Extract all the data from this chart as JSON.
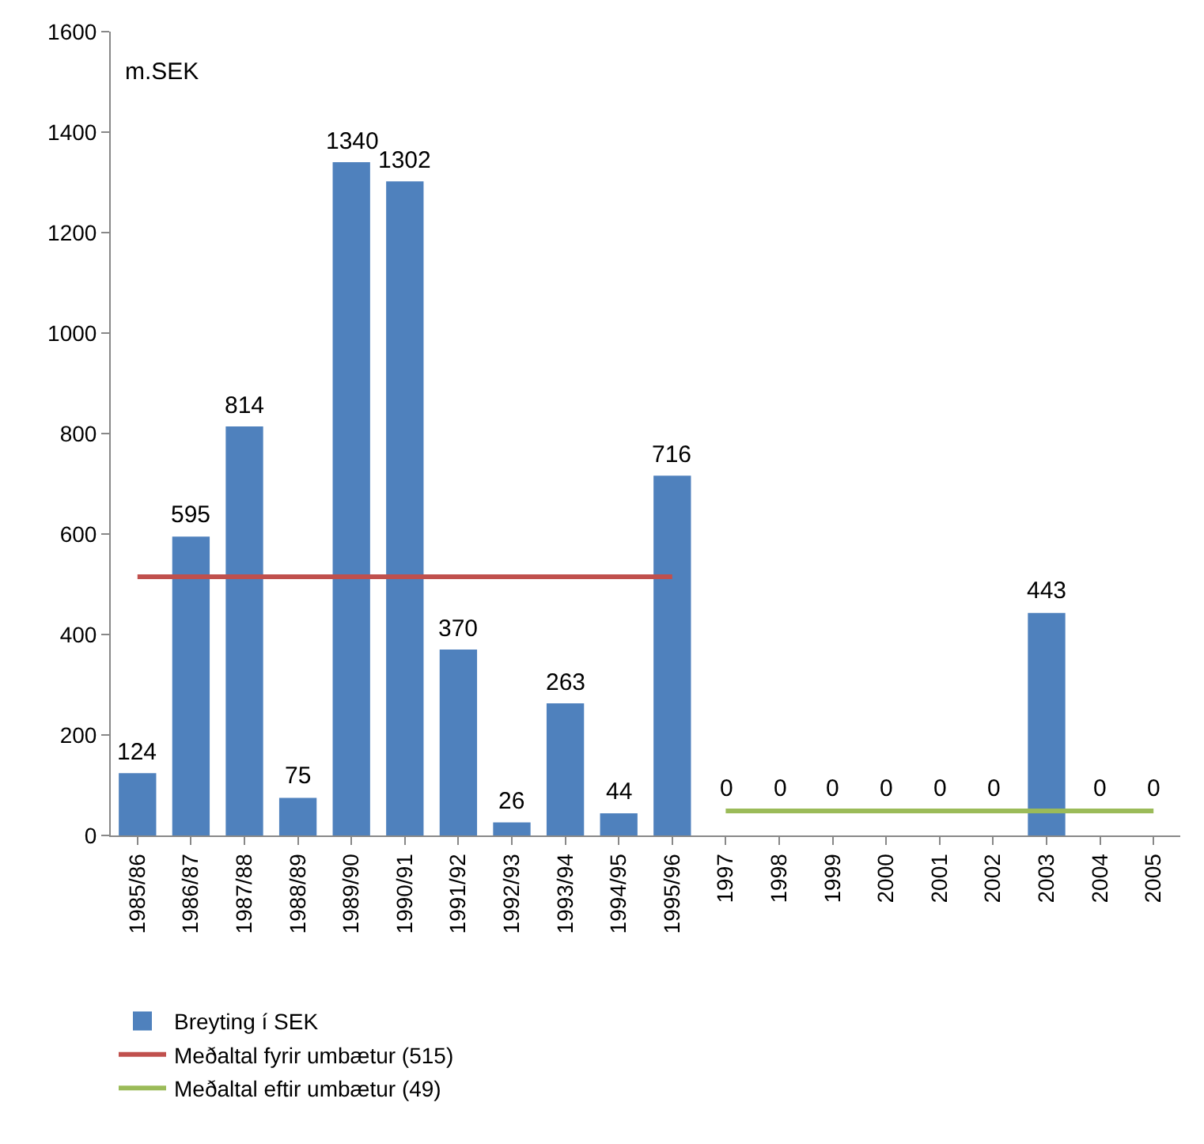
{
  "chart_data": {
    "type": "bar",
    "annotations": [
      "m.SEK"
    ],
    "categories": [
      "1985/86",
      "1986/87",
      "1987/88",
      "1988/89",
      "1989/90",
      "1990/91",
      "1991/92",
      "1992/93",
      "1993/94",
      "1994/95",
      "1995/96",
      "1997",
      "1998",
      "1999",
      "2000",
      "2001",
      "2002",
      "2003",
      "2004",
      "2005"
    ],
    "series": [
      {
        "name": "Breyting í SEK",
        "color": "#4f81bd",
        "values": [
          124,
          595,
          814,
          75,
          1340,
          1302,
          370,
          26,
          263,
          44,
          716,
          0,
          0,
          0,
          0,
          0,
          0,
          443,
          0,
          0
        ],
        "value_labels": [
          "124",
          "595",
          "814",
          "75",
          "1340",
          "1302",
          "370",
          "26",
          "263",
          "44",
          "716",
          "0",
          "0",
          "0",
          "0",
          "0",
          "0",
          "443",
          "0",
          "0"
        ]
      },
      {
        "name": "Meðaltal fyrir umbætur (515)",
        "type": "line",
        "color": "#c0504d",
        "values": [
          515,
          515,
          515,
          515,
          515,
          515,
          515,
          515,
          515,
          515,
          515,
          null,
          null,
          null,
          null,
          null,
          null,
          null,
          null,
          null
        ]
      },
      {
        "name": "Meðaltal eftir umbætur (49)",
        "type": "line",
        "color": "#9bbb59",
        "values": [
          null,
          null,
          null,
          null,
          null,
          null,
          null,
          null,
          null,
          null,
          null,
          49,
          49,
          49,
          49,
          49,
          49,
          49,
          49,
          49
        ]
      }
    ],
    "ylim": [
      0,
      1600
    ],
    "yticks": [
      0,
      200,
      400,
      600,
      800,
      1000,
      1200,
      1400,
      1600
    ],
    "grid": false,
    "legend": "bottom",
    "marker": "none",
    "line_style": "solid"
  }
}
